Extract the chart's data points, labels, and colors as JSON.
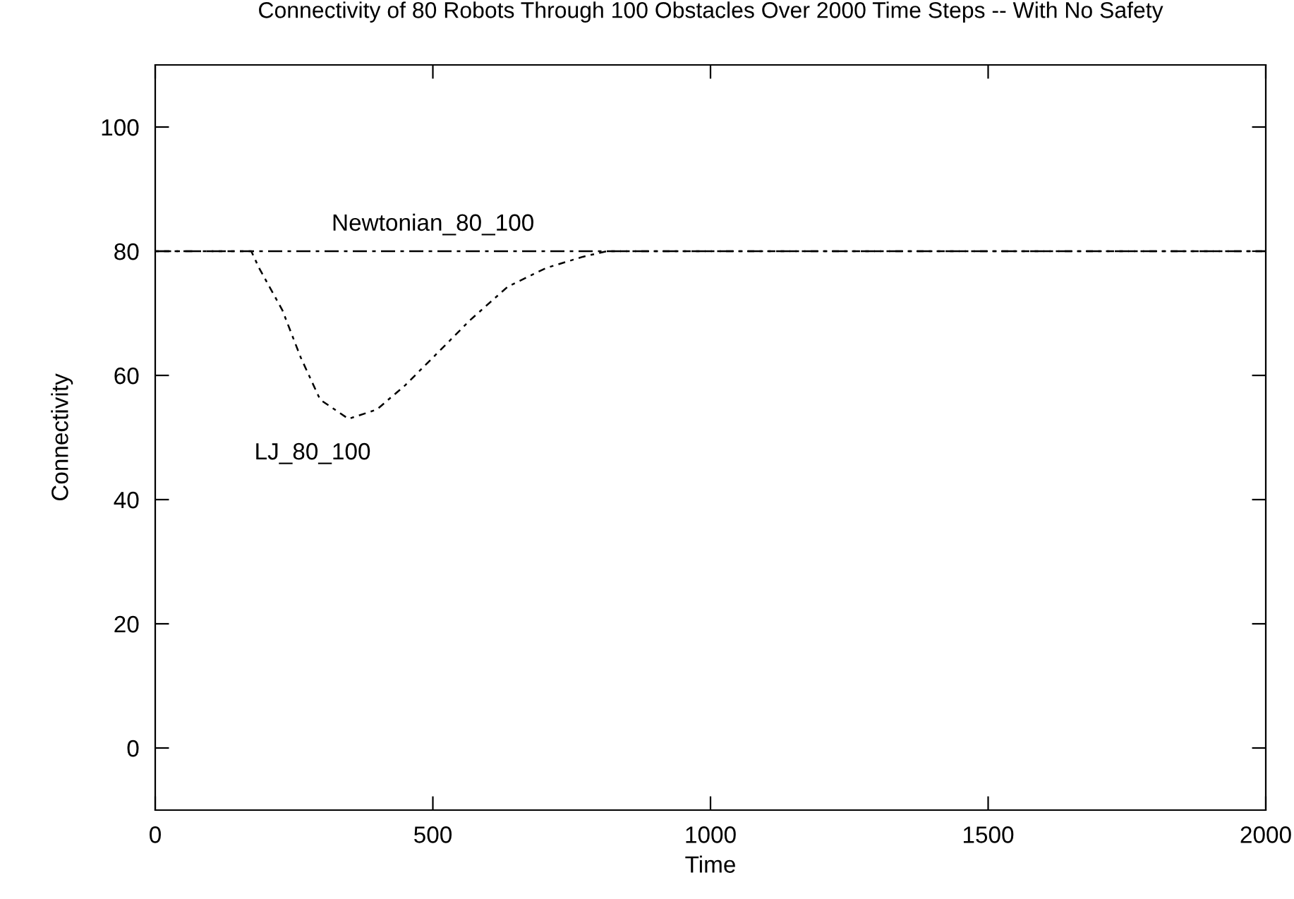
{
  "chart_data": {
    "type": "line",
    "title": "Connectivity of 80 Robots Through 100 Obstacles Over 2000 Time Steps -- With No Safety",
    "xlabel": "Time",
    "ylabel": "Connectivity",
    "xlim": [
      0,
      2000
    ],
    "xticks": [
      0,
      500,
      1000,
      1500,
      2000
    ],
    "ylim": [
      -10,
      110
    ],
    "yticks": [
      0,
      20,
      40,
      60,
      80,
      100
    ],
    "grid": false,
    "legend": false,
    "series": [
      {
        "name": "Newtonian_80_100",
        "color": "#000000",
        "line_style": "dashed",
        "x": [
          0,
          2000
        ],
        "values": [
          80,
          80
        ]
      },
      {
        "name": "LJ_80_100",
        "color": "#000000",
        "line_style": "dotted",
        "x": [
          0,
          173,
          187,
          229,
          262,
          297,
          348,
          399,
          450,
          516,
          567,
          635,
          704,
          770,
          813,
          2000
        ],
        "values": [
          80,
          80,
          77.3,
          70.5,
          62.9,
          56.1,
          53,
          54.5,
          58.4,
          64.3,
          68.9,
          74.3,
          77.3,
          79.1,
          80,
          80
        ]
      }
    ]
  }
}
